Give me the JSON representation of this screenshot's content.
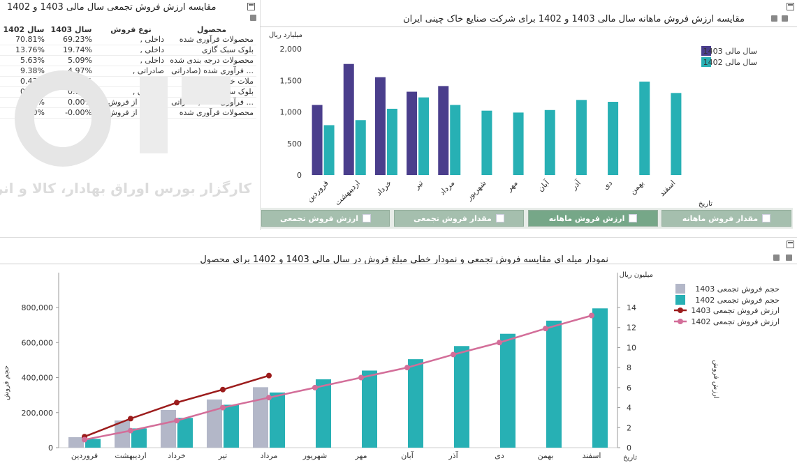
{
  "table_panel": {
    "title": "مقایسه ارزش فروش تجمعی سال مالی 1403 و 1402",
    "headers": {
      "product": "محصول",
      "type": "نوع فروش",
      "y1403": "سال 1403",
      "y1402": "سال 1402"
    },
    "rows": [
      {
        "product": "محصولات فرآوری شده",
        "type": "داخلی ,",
        "y1403": "69.23%",
        "y1402": "70.81%"
      },
      {
        "product": "بلوک سبک گازی",
        "type": "داخلی ,",
        "y1403": "19.74%",
        "y1402": "13.76%"
      },
      {
        "product": "محصولات درجه بندی شده",
        "type": "داخلی ,",
        "y1403": "5.09%",
        "y1402": "5.63%"
      },
      {
        "product": "... فرآوری شده (صادراتی",
        "type": "صادراتی ,",
        "y1403": "4.97%",
        "y1402": "9.38%"
      },
      {
        "product": "ملات خشک",
        "type": "داخلی ,",
        "y1403": "0.86%",
        "y1402": "0.43%"
      },
      {
        "product": "بلوک سبک گازی",
        "type": "صادراتی ,",
        "y1403": "0.11%",
        "y1402": "0.00%"
      },
      {
        "product": "... فرآوری شده (صادراتی",
        "type": "برگشت از فروش ,",
        "y1403": "0.00%",
        "y1402": "-0.02%"
      },
      {
        "product": "محصولات فرآوری شده",
        "type": "برگشت از فروش",
        "y1403": "-0.00%",
        "y1402": "0.00%"
      }
    ]
  },
  "watermark": {
    "text": "کارگزار بورس اوراق بهادار، کالا و انرژی"
  },
  "monthly_panel": {
    "title": "مقایسه ارزش فروش ماهانه سال مالی 1403 و 1402 برای شرکت صنایع خاک چینی ایران"
  },
  "tabs": [
    {
      "label": "ارزش فروش تجمعی",
      "active": false
    },
    {
      "label": "مقدار فروش تجمعی",
      "active": false
    },
    {
      "label": "ارزش فروش ماهانه",
      "active": true
    },
    {
      "label": "مقدار فروش ماهانه",
      "active": false
    }
  ],
  "cumulative_panel": {
    "title": "نمودار میله ای مقایسه فروش تجمعی و نمودار خطی مبلغ فروش در سال مالی 1403 و 1402 برای محصول"
  },
  "chart_data": [
    {
      "type": "bar",
      "ylabel": "میلیارد ریال",
      "xlabel": "تاریخ",
      "ylim": [
        0,
        2000
      ],
      "yticks": [
        "0",
        "500",
        "1,000",
        "1,500",
        "2,000"
      ],
      "grid": false,
      "legend_position": "top-right",
      "categories": [
        "فروردین",
        "اردیبهشت",
        "خرداد",
        "تیر",
        "مرداد",
        "شهریور",
        "مهر",
        "آبان",
        "آذر",
        "دی",
        "بهمن",
        "اسفند"
      ],
      "series": [
        {
          "name": "سال مالی  1403",
          "color": "#4a3e8c",
          "values": [
            1110,
            1760,
            1550,
            1320,
            1410,
            null,
            null,
            null,
            null,
            null,
            null,
            null
          ]
        },
        {
          "name": "سال مالی  1402",
          "color": "#27b0b4",
          "values": [
            790,
            870,
            1050,
            1230,
            1110,
            1020,
            990,
            1030,
            1190,
            1160,
            1480,
            1300
          ]
        }
      ]
    },
    {
      "type": "bar+line",
      "ylabel_left": "حجم فروش",
      "ylabel_right": "ارزش فروش",
      "unit_right": "میلیون ریال",
      "xlabel": "تاریخ",
      "ylim_left": [
        0,
        800000
      ],
      "yticks_left": [
        "0",
        "200,000",
        "400,000",
        "600,000",
        "800,000"
      ],
      "ylim_right": [
        0,
        14
      ],
      "yticks_right": [
        "0",
        "2",
        "4",
        "6",
        "8",
        "10",
        "12",
        "14"
      ],
      "grid": false,
      "legend_position": "top-right",
      "categories": [
        "فروردین",
        "اردیبهشت",
        "خرداد",
        "تیر",
        "مرداد",
        "شهریور",
        "مهر",
        "آبان",
        "آذر",
        "دی",
        "بهمن",
        "اسفند"
      ],
      "bar_series": [
        {
          "name": "حجم فروش تجمعی  1403",
          "color": "#b3b7c8",
          "values": [
            60000,
            155000,
            215000,
            275000,
            345000,
            null,
            null,
            null,
            null,
            null,
            null,
            null
          ]
        },
        {
          "name": "حجم فروش تجمعی  1402",
          "color": "#27b0b4",
          "values": [
            50000,
            110000,
            170000,
            245000,
            315000,
            390000,
            440000,
            505000,
            580000,
            650000,
            725000,
            795000
          ]
        }
      ],
      "line_series": [
        {
          "name": "ارزش فروش تجمعی  1403",
          "color": "#9c1c1c",
          "values": [
            1.1,
            2.9,
            4.5,
            5.8,
            7.2,
            null,
            null,
            null,
            null,
            null,
            null,
            null
          ]
        },
        {
          "name": "ارزش فروش تجمعی  1402",
          "color": "#d36e99",
          "values": [
            0.8,
            1.7,
            2.7,
            4.0,
            5.0,
            6.0,
            7.0,
            8.0,
            9.3,
            10.5,
            11.9,
            13.2
          ]
        }
      ]
    }
  ]
}
